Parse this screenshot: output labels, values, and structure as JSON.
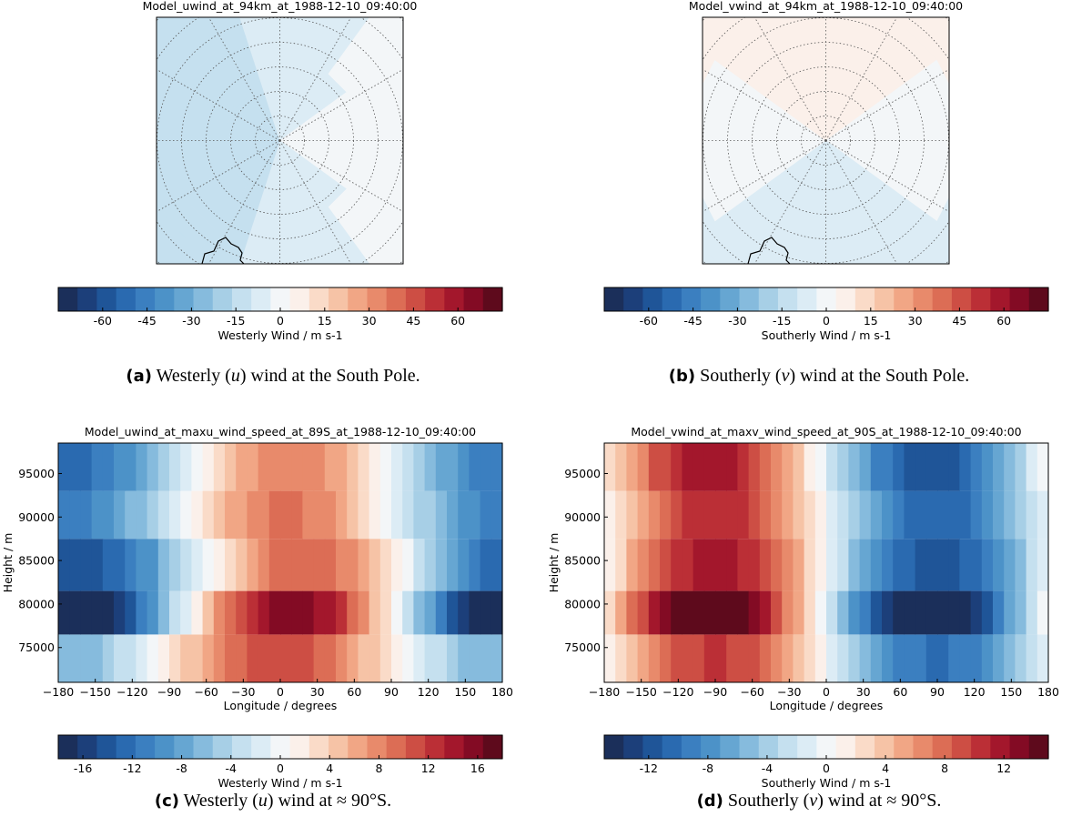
{
  "colors": {
    "cmap": [
      "#1b2f5a",
      "#1c3f7a",
      "#1f5598",
      "#2a6ab0",
      "#3b7fc0",
      "#4c92c8",
      "#66a6d2",
      "#86bbdd",
      "#a7cfe6",
      "#c5e0ef",
      "#dcecf5",
      "#f3f6f8",
      "#fbf0ea",
      "#fadbc8",
      "#f6c3a6",
      "#f1a685",
      "#e88a6b",
      "#dc6d55",
      "#cd4e44",
      "#bb2f36",
      "#a3172c",
      "#830b24",
      "#5e0a1c"
    ],
    "grid": "#555555"
  },
  "chart_data": [
    {
      "id": "a",
      "type": "heatmap",
      "projection": "south-polar",
      "title": "Model_uwind_at_94km_at_1988-12-10_09:40:00",
      "colorbar": {
        "ticks": [
          "-60",
          "-45",
          "-30",
          "-15",
          "0",
          "15",
          "30",
          "45",
          "60"
        ],
        "range": [
          -75,
          75
        ],
        "label": "Westerly Wind / m s-1"
      },
      "field": {
        "type": "sinusoid",
        "amplitude": 18,
        "phase_deg": 0,
        "base": -8
      },
      "caption": {
        "bold": "(a)",
        "pre": " Westerly (",
        "italic": "u",
        "post": ") wind at the South Pole."
      }
    },
    {
      "id": "b",
      "type": "heatmap",
      "projection": "south-polar",
      "title": "Model_vwind_at_94km_at_1988-12-10_09:40:00",
      "colorbar": {
        "ticks": [
          "-60",
          "-45",
          "-30",
          "-15",
          "0",
          "15",
          "30",
          "45",
          "60"
        ],
        "range": [
          -75,
          75
        ],
        "label": "Southerly Wind / m s-1"
      },
      "field": {
        "type": "sinusoid",
        "amplitude": 16,
        "phase_deg": 90,
        "base": 0
      },
      "caption": {
        "bold": "(b)",
        "pre": " Southerly (",
        "italic": "v",
        "post": ") wind at the South Pole."
      }
    },
    {
      "id": "c",
      "type": "heatmap",
      "title": "Model_uwind_at_maxu_wind_speed_at_89S_at_1988-12-10_09:40:00",
      "xlabel": "Longitude / degrees",
      "ylabel": "Height / m",
      "xlim": [
        -180,
        180
      ],
      "ylim": [
        71000,
        98500
      ],
      "xticks": [
        "−180",
        "−150",
        "−120",
        "−90",
        "−60",
        "−30",
        "0",
        "30",
        "60",
        "90",
        "120",
        "150",
        "180"
      ],
      "yticks": [
        "75000",
        "80000",
        "85000",
        "90000",
        "95000"
      ],
      "rows": [
        {
          "y0": 71000,
          "y1": 76500,
          "amplitude": 9,
          "phase_deg": -90,
          "base": 2
        },
        {
          "y0": 76500,
          "y1": 81500,
          "amplitude": 18,
          "phase_deg": -80,
          "base": -2
        },
        {
          "y0": 81500,
          "y1": 87500,
          "amplitude": 12,
          "phase_deg": -70,
          "base": -2
        },
        {
          "y0": 87500,
          "y1": 93000,
          "amplitude": 10,
          "phase_deg": -85,
          "base": -1
        },
        {
          "y0": 93000,
          "y1": 98500,
          "amplitude": 10,
          "phase_deg": -80,
          "base": -2
        }
      ],
      "colorbar": {
        "ticks": [
          "-16",
          "-12",
          "-8",
          "-4",
          "0",
          "4",
          "8",
          "12",
          "16"
        ],
        "range": [
          -18,
          18
        ],
        "label": "Westerly Wind / m s-1"
      },
      "caption": {
        "bold": "(c)",
        "pre": " Westerly (",
        "italic": "u",
        "post": ") wind at ≈ 90°S."
      }
    },
    {
      "id": "d",
      "type": "heatmap",
      "title": "Model_vwind_at_maxv_wind_speed_at_90S_at_1988-12-10_09:40:00",
      "xlabel": "Longitude / degrees",
      "ylabel": "Height / m",
      "xlim": [
        -180,
        180
      ],
      "ylim": [
        71000,
        98500
      ],
      "xticks": [
        "−180",
        "−150",
        "−120",
        "−90",
        "−60",
        "−30",
        "0",
        "30",
        "60",
        "90",
        "120",
        "150",
        "180"
      ],
      "yticks": [
        "75000",
        "80000",
        "85000",
        "90000",
        "95000"
      ],
      "rows": [
        {
          "y0": 71000,
          "y1": 76500,
          "amplitude": 10,
          "phase_deg": 180,
          "base": 0
        },
        {
          "y0": 76500,
          "y1": 81500,
          "amplitude": 16,
          "phase_deg": 175,
          "base": 0
        },
        {
          "y0": 81500,
          "y1": 87500,
          "amplitude": 12,
          "phase_deg": 180,
          "base": 0
        },
        {
          "y0": 87500,
          "y1": 93000,
          "amplitude": 11,
          "phase_deg": 180,
          "base": 0
        },
        {
          "y0": 93000,
          "y1": 98500,
          "amplitude": 12,
          "phase_deg": 175,
          "base": 0
        }
      ],
      "colorbar": {
        "ticks": [
          "-12",
          "-8",
          "-4",
          "0",
          "4",
          "8",
          "12"
        ],
        "range": [
          -15,
          15
        ],
        "label": "Southerly Wind / m s-1"
      },
      "caption": {
        "bold": "(d)",
        "pre": " Southerly (",
        "italic": "v",
        "post": ") wind at ≈ 90°S."
      }
    }
  ]
}
